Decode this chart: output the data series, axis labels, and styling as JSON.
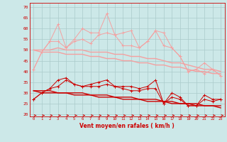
{
  "x": [
    0,
    1,
    2,
    3,
    4,
    5,
    6,
    7,
    8,
    9,
    10,
    11,
    12,
    13,
    14,
    15,
    16,
    17,
    18,
    19,
    20,
    21,
    22,
    23
  ],
  "line_upper1": [
    41,
    49,
    54,
    62,
    51,
    55,
    60,
    58,
    58,
    67,
    57,
    58,
    59,
    51,
    54,
    59,
    58,
    51,
    47,
    40,
    41,
    44,
    41,
    38
  ],
  "line_upper2": [
    41,
    49,
    54,
    54,
    51,
    54,
    55,
    53,
    57,
    58,
    57,
    52,
    52,
    51,
    54,
    59,
    52,
    51,
    47,
    40,
    41,
    39,
    41,
    38
  ],
  "trend_upper1": [
    50,
    50,
    50,
    51,
    50,
    50,
    50,
    49,
    49,
    49,
    48,
    48,
    47,
    47,
    46,
    46,
    45,
    44,
    44,
    43,
    42,
    41,
    41,
    40
  ],
  "trend_upper2": [
    50,
    49,
    49,
    49,
    48,
    48,
    48,
    47,
    47,
    46,
    46,
    45,
    45,
    44,
    44,
    43,
    43,
    42,
    42,
    41,
    40,
    40,
    39,
    39
  ],
  "line_lower1": [
    27,
    30,
    32,
    36,
    37,
    34,
    33,
    34,
    35,
    36,
    33,
    33,
    33,
    32,
    33,
    36,
    25,
    30,
    28,
    24,
    24,
    29,
    27,
    27
  ],
  "line_lower2": [
    27,
    30,
    32,
    33,
    36,
    34,
    33,
    33,
    33,
    34,
    33,
    32,
    31,
    31,
    32,
    32,
    25,
    28,
    27,
    24,
    24,
    27,
    26,
    27
  ],
  "trend_lower1": [
    31,
    31,
    31,
    30,
    30,
    30,
    30,
    29,
    29,
    29,
    28,
    28,
    28,
    27,
    27,
    27,
    26,
    26,
    25,
    25,
    25,
    24,
    24,
    24
  ],
  "trend_lower2": [
    31,
    30,
    30,
    30,
    30,
    29,
    29,
    29,
    28,
    28,
    28,
    27,
    27,
    27,
    26,
    26,
    26,
    25,
    25,
    25,
    24,
    24,
    24,
    23
  ],
  "color_light": "#f4a0a0",
  "color_dark": "#cc0000",
  "bgcolor": "#cce8e8",
  "grid_color": "#aacaca",
  "xlabel": "Vent moyen/en rafales ( km/h )",
  "ylim": [
    19,
    72
  ],
  "yticks": [
    20,
    25,
    30,
    35,
    40,
    45,
    50,
    55,
    60,
    65,
    70
  ],
  "xticks": [
    0,
    1,
    2,
    3,
    4,
    5,
    6,
    7,
    8,
    9,
    10,
    11,
    12,
    13,
    14,
    15,
    16,
    17,
    18,
    19,
    20,
    21,
    22,
    23
  ]
}
